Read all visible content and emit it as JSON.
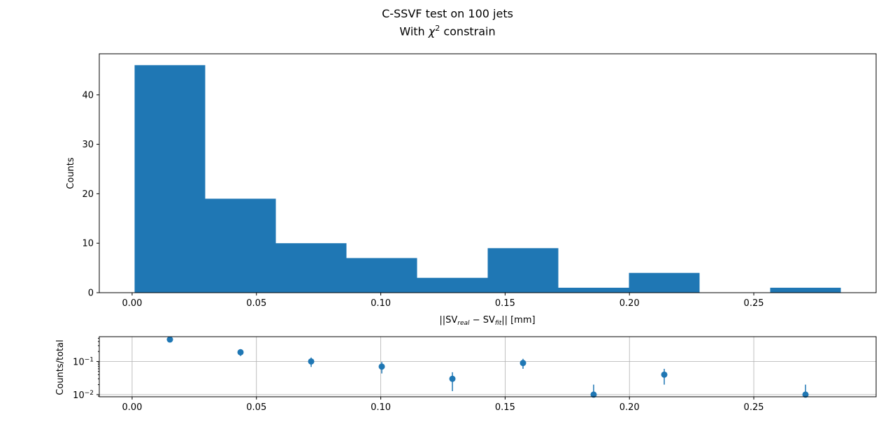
{
  "figure": {
    "title": "C-SSVF test on 100 jets",
    "subtitle_prefix": "With ",
    "subtitle_symbol": "χ",
    "subtitle_sup": "2",
    "subtitle_suffix": " constrain"
  },
  "chart_data": [
    {
      "type": "bar",
      "subtype": "histogram",
      "bin_edges": [
        0.001,
        0.0294,
        0.0578,
        0.0862,
        0.1146,
        0.143,
        0.1714,
        0.1998,
        0.2282,
        0.2566,
        0.285
      ],
      "values": [
        46,
        19,
        10,
        7,
        3,
        9,
        1,
        4,
        0,
        1
      ],
      "xlabel_parts": [
        "||SV",
        "real",
        " − SV",
        "fit",
        "|| [mm]"
      ],
      "ylabel": "Counts",
      "xlim": [
        -0.0132,
        0.2992
      ],
      "ylim": [
        0,
        48.3
      ],
      "xticks": [
        0.0,
        0.05,
        0.1,
        0.15,
        0.2,
        0.25
      ],
      "xtick_labels": [
        "0.00",
        "0.05",
        "0.10",
        "0.15",
        "0.20",
        "0.25"
      ],
      "yticks": [
        0,
        10,
        20,
        30,
        40
      ],
      "ytick_labels": [
        "0",
        "10",
        "20",
        "30",
        "40"
      ],
      "grid": false,
      "color": "#1f77b4"
    },
    {
      "type": "scatter",
      "x": [
        0.0152,
        0.0436,
        0.072,
        0.1004,
        0.1288,
        0.1572,
        0.1856,
        0.214,
        0.2708
      ],
      "y": [
        0.46,
        0.19,
        0.1,
        0.07,
        0.03,
        0.09,
        0.01,
        0.04,
        0.01
      ],
      "yerr": [
        0.0678,
        0.0436,
        0.0316,
        0.0265,
        0.0173,
        0.03,
        0.01,
        0.02,
        0.01
      ],
      "ylabel": "Counts/total",
      "yscale": "log",
      "xlim": [
        -0.0132,
        0.2992
      ],
      "ylim": [
        0.0086,
        0.56
      ],
      "xticks": [
        0.0,
        0.05,
        0.1,
        0.15,
        0.2,
        0.25
      ],
      "xtick_labels": [
        "0.00",
        "0.05",
        "0.10",
        "0.15",
        "0.20",
        "0.25"
      ],
      "yticks": [
        0.01,
        0.1
      ],
      "ytick_base": "10",
      "ytick_exponents": [
        "−2",
        "−1"
      ],
      "grid": true,
      "color": "#1f77b4"
    }
  ]
}
